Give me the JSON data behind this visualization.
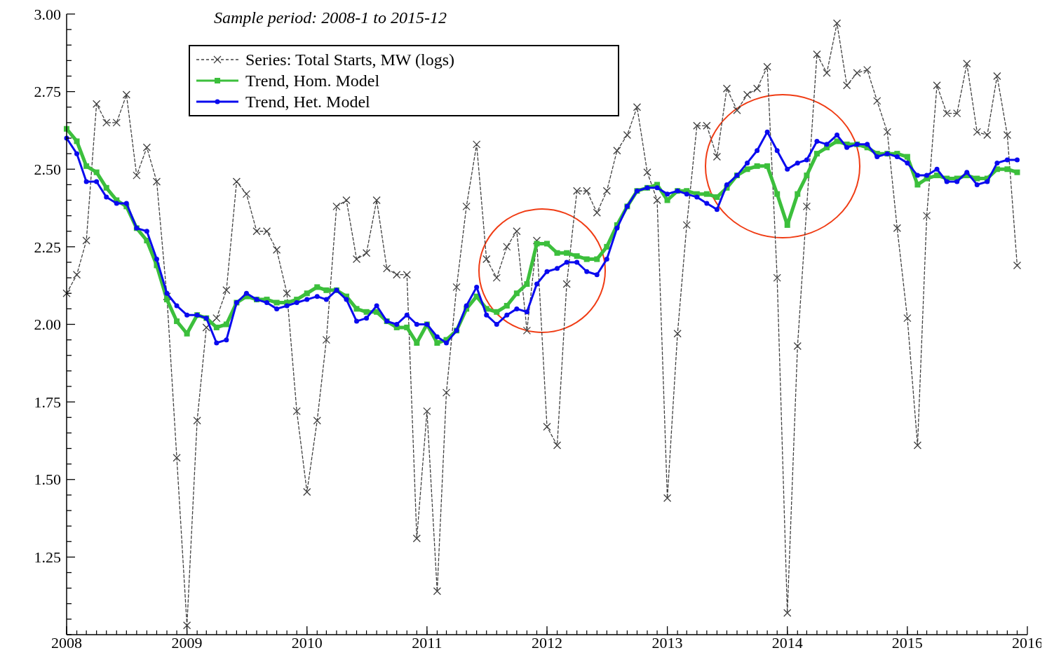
{
  "chart_data": {
    "type": "line",
    "title": "Sample period: 2008-1 to 2015-12",
    "x": [
      "2008-01",
      "2008-02",
      "2008-03",
      "2008-04",
      "2008-05",
      "2008-06",
      "2008-07",
      "2008-08",
      "2008-09",
      "2008-10",
      "2008-11",
      "2008-12",
      "2009-01",
      "2009-02",
      "2009-03",
      "2009-04",
      "2009-05",
      "2009-06",
      "2009-07",
      "2009-08",
      "2009-09",
      "2009-10",
      "2009-11",
      "2009-12",
      "2010-01",
      "2010-02",
      "2010-03",
      "2010-04",
      "2010-05",
      "2010-06",
      "2010-07",
      "2010-08",
      "2010-09",
      "2010-10",
      "2010-11",
      "2010-12",
      "2011-01",
      "2011-02",
      "2011-03",
      "2011-04",
      "2011-05",
      "2011-06",
      "2011-07",
      "2011-08",
      "2011-09",
      "2011-10",
      "2011-11",
      "2011-12",
      "2012-01",
      "2012-02",
      "2012-03",
      "2012-04",
      "2012-05",
      "2012-06",
      "2012-07",
      "2012-08",
      "2012-09",
      "2012-10",
      "2012-11",
      "2012-12",
      "2013-01",
      "2013-02",
      "2013-03",
      "2013-04",
      "2013-05",
      "2013-06",
      "2013-07",
      "2013-08",
      "2013-09",
      "2013-10",
      "2013-11",
      "2013-12",
      "2014-01",
      "2014-02",
      "2014-03",
      "2014-04",
      "2014-05",
      "2014-06",
      "2014-07",
      "2014-08",
      "2014-09",
      "2014-10",
      "2014-11",
      "2014-12",
      "2015-01",
      "2015-02",
      "2015-03",
      "2015-04",
      "2015-05",
      "2015-06",
      "2015-07",
      "2015-08",
      "2015-09",
      "2015-10",
      "2015-11",
      "2015-12"
    ],
    "series": [
      {
        "name": "Series: Total Starts, MW (logs)",
        "color": "#404040",
        "marker": "cross",
        "line_style": "dashed",
        "values": [
          2.1,
          2.16,
          2.27,
          2.71,
          2.65,
          2.65,
          2.74,
          2.48,
          2.57,
          2.46,
          2.09,
          1.57,
          1.03,
          1.69,
          1.99,
          2.02,
          2.11,
          2.46,
          2.42,
          2.3,
          2.3,
          2.24,
          2.1,
          1.72,
          1.46,
          1.69,
          1.95,
          2.38,
          2.4,
          2.21,
          2.23,
          2.4,
          2.18,
          2.16,
          2.16,
          1.31,
          1.72,
          1.14,
          1.78,
          2.12,
          2.38,
          2.58,
          2.21,
          2.15,
          2.25,
          2.3,
          1.98,
          2.27,
          1.67,
          1.61,
          2.13,
          2.43,
          2.43,
          2.36,
          2.43,
          2.56,
          2.61,
          2.7,
          2.49,
          2.4,
          1.44,
          1.97,
          2.32,
          2.64,
          2.64,
          2.54,
          2.76,
          2.69,
          2.74,
          2.76,
          2.83,
          2.15,
          1.07,
          1.93,
          2.38,
          2.87,
          2.81,
          2.97,
          2.77,
          2.81,
          2.82,
          2.72,
          2.62,
          2.31,
          2.02,
          1.61,
          2.35,
          2.77,
          2.68,
          2.68,
          2.84,
          2.62,
          2.61,
          2.8,
          2.61,
          2.19
        ]
      },
      {
        "name": "Trend, Hom. Model",
        "color": "#3cbf3c",
        "marker": "square",
        "line_style": "solid",
        "values": [
          2.63,
          2.59,
          2.51,
          2.49,
          2.44,
          2.4,
          2.38,
          2.31,
          2.27,
          2.19,
          2.08,
          2.01,
          1.97,
          2.03,
          2.02,
          1.99,
          2.0,
          2.07,
          2.09,
          2.08,
          2.08,
          2.07,
          2.07,
          2.08,
          2.1,
          2.12,
          2.11,
          2.11,
          2.09,
          2.05,
          2.04,
          2.04,
          2.01,
          1.99,
          1.99,
          1.94,
          2.0,
          1.94,
          1.95,
          1.98,
          2.05,
          2.09,
          2.05,
          2.04,
          2.06,
          2.1,
          2.13,
          2.26,
          2.26,
          2.23,
          2.23,
          2.22,
          2.21,
          2.21,
          2.25,
          2.32,
          2.38,
          2.43,
          2.44,
          2.45,
          2.4,
          2.43,
          2.43,
          2.42,
          2.42,
          2.41,
          2.44,
          2.48,
          2.5,
          2.51,
          2.51,
          2.42,
          2.32,
          2.42,
          2.48,
          2.55,
          2.57,
          2.59,
          2.58,
          2.58,
          2.57,
          2.55,
          2.55,
          2.55,
          2.54,
          2.45,
          2.47,
          2.48,
          2.47,
          2.47,
          2.48,
          2.47,
          2.47,
          2.5,
          2.5,
          2.49
        ]
      },
      {
        "name": "Trend, Het. Model",
        "color": "#0a0aee",
        "marker": "circle",
        "line_style": "solid",
        "values": [
          2.6,
          2.55,
          2.46,
          2.46,
          2.41,
          2.39,
          2.39,
          2.31,
          2.3,
          2.21,
          2.1,
          2.06,
          2.03,
          2.03,
          2.02,
          1.94,
          1.95,
          2.07,
          2.1,
          2.08,
          2.07,
          2.05,
          2.06,
          2.07,
          2.08,
          2.09,
          2.08,
          2.11,
          2.08,
          2.01,
          2.02,
          2.06,
          2.01,
          2.0,
          2.03,
          2.0,
          2.0,
          1.96,
          1.94,
          1.98,
          2.06,
          2.12,
          2.03,
          2.0,
          2.03,
          2.05,
          2.04,
          2.13,
          2.17,
          2.18,
          2.2,
          2.2,
          2.17,
          2.16,
          2.21,
          2.31,
          2.38,
          2.43,
          2.44,
          2.44,
          2.42,
          2.43,
          2.42,
          2.41,
          2.39,
          2.37,
          2.45,
          2.48,
          2.52,
          2.56,
          2.62,
          2.56,
          2.5,
          2.52,
          2.53,
          2.59,
          2.58,
          2.61,
          2.57,
          2.58,
          2.58,
          2.54,
          2.55,
          2.54,
          2.52,
          2.48,
          2.48,
          2.5,
          2.46,
          2.46,
          2.49,
          2.45,
          2.46,
          2.52,
          2.53,
          2.53
        ]
      }
    ],
    "xlim": [
      "2008",
      "2016"
    ],
    "xticks": [
      "2008",
      "2009",
      "2010",
      "2011",
      "2012",
      "2013",
      "2014",
      "2015",
      "2016"
    ],
    "ylim": [
      1.0,
      3.0
    ],
    "yticks": [
      {
        "value": 1.0,
        "label": null
      },
      {
        "value": 1.05,
        "label": null
      },
      {
        "value": 1.1,
        "label": null
      },
      {
        "value": 1.15,
        "label": null
      },
      {
        "value": 1.2,
        "label": null
      },
      {
        "value": 1.25,
        "label": "1.25"
      },
      {
        "value": 1.3,
        "label": null
      },
      {
        "value": 1.35,
        "label": null
      },
      {
        "value": 1.4,
        "label": null
      },
      {
        "value": 1.45,
        "label": null
      },
      {
        "value": 1.5,
        "label": "1.50"
      },
      {
        "value": 1.55,
        "label": null
      },
      {
        "value": 1.6,
        "label": null
      },
      {
        "value": 1.65,
        "label": null
      },
      {
        "value": 1.7,
        "label": null
      },
      {
        "value": 1.75,
        "label": "1.75"
      },
      {
        "value": 1.8,
        "label": null
      },
      {
        "value": 1.85,
        "label": null
      },
      {
        "value": 1.9,
        "label": null
      },
      {
        "value": 1.95,
        "label": null
      },
      {
        "value": 2.0,
        "label": "2.00"
      },
      {
        "value": 2.05,
        "label": null
      },
      {
        "value": 2.1,
        "label": null
      },
      {
        "value": 2.15,
        "label": null
      },
      {
        "value": 2.2,
        "label": null
      },
      {
        "value": 2.25,
        "label": "2.25"
      },
      {
        "value": 2.3,
        "label": null
      },
      {
        "value": 2.35,
        "label": null
      },
      {
        "value": 2.4,
        "label": null
      },
      {
        "value": 2.45,
        "label": null
      },
      {
        "value": 2.5,
        "label": "2.50"
      },
      {
        "value": 2.55,
        "label": null
      },
      {
        "value": 2.6,
        "label": null
      },
      {
        "value": 2.65,
        "label": null
      },
      {
        "value": 2.7,
        "label": null
      },
      {
        "value": 2.75,
        "label": "2.75"
      },
      {
        "value": 2.8,
        "label": null
      },
      {
        "value": 2.85,
        "label": null
      },
      {
        "value": 2.9,
        "label": null
      },
      {
        "value": 2.95,
        "label": null
      },
      {
        "value": 3.0,
        "label": "3.00"
      }
    ],
    "grid": false,
    "legend": "top left"
  }
}
